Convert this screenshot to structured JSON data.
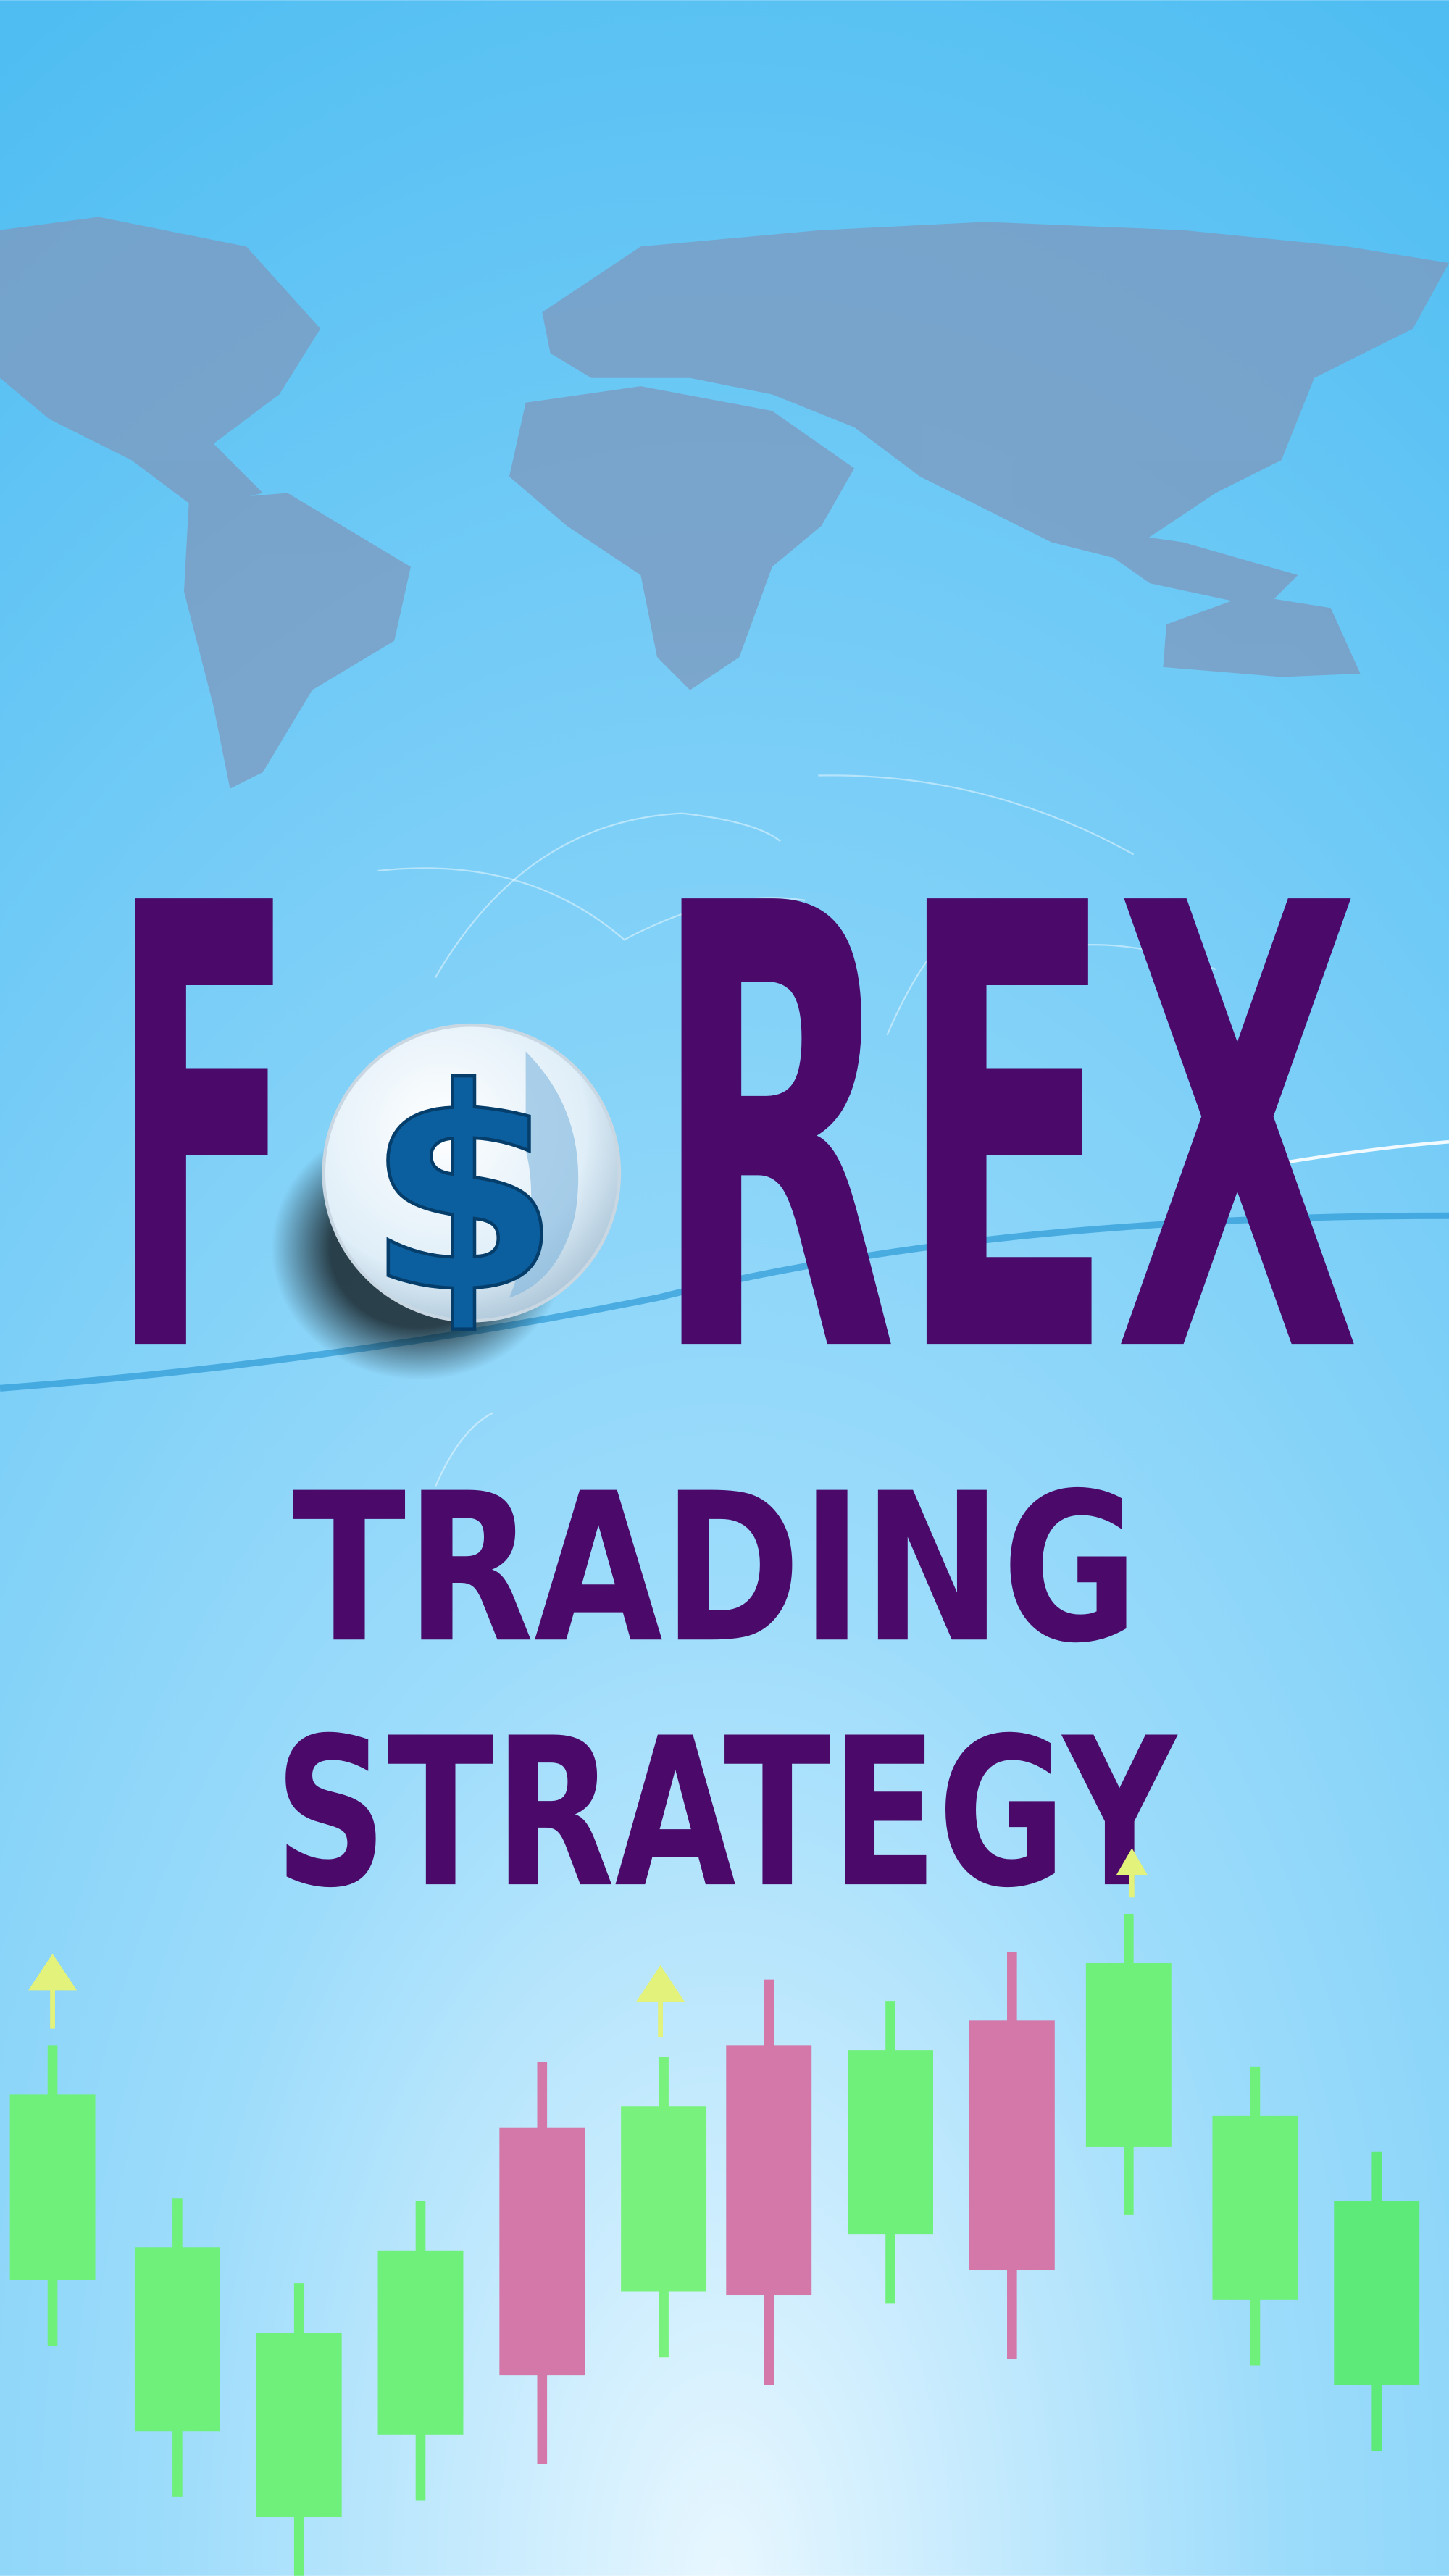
{
  "logo": {
    "before": "F",
    "symbol": "$",
    "after": "REX"
  },
  "headline": [
    "TRADING",
    "STRATEGY"
  ]
}
